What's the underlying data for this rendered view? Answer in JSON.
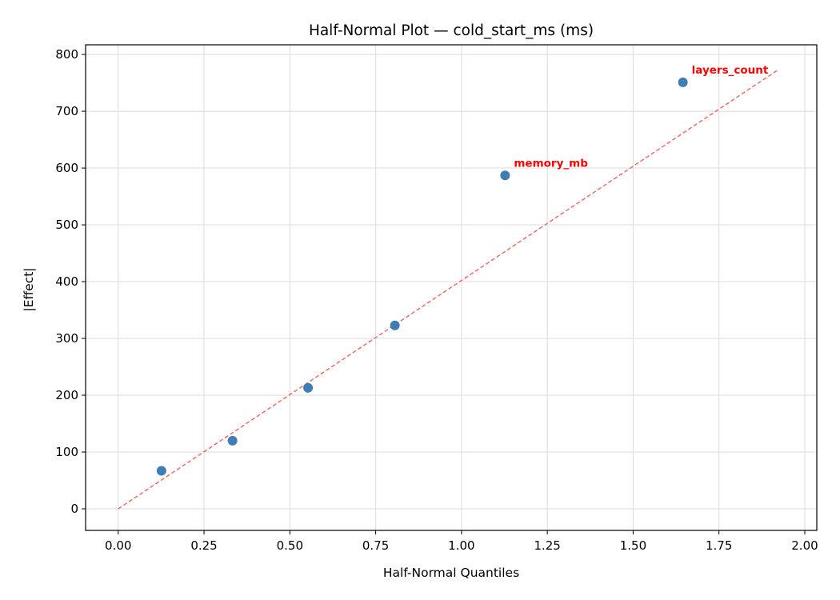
{
  "chart_data": {
    "type": "scatter",
    "title": "Half-Normal Plot — cold_start_ms (ms)",
    "xlabel": "Half-Normal Quantiles",
    "ylabel": "|Effect|",
    "xlim": [
      -0.095,
      2.035
    ],
    "ylim": [
      -38,
      817
    ],
    "x_ticks": [
      "0.00",
      "0.25",
      "0.50",
      "0.75",
      "1.00",
      "1.25",
      "1.50",
      "1.75",
      "2.00"
    ],
    "y_ticks": [
      "0",
      "100",
      "200",
      "300",
      "400",
      "500",
      "600",
      "700",
      "800"
    ],
    "grid": true,
    "series": [
      {
        "marker_color": "#3f7db5",
        "points": [
          {
            "x": 0.126,
            "y": 67
          },
          {
            "x": 0.333,
            "y": 120
          },
          {
            "x": 0.553,
            "y": 213
          },
          {
            "x": 0.806,
            "y": 323
          },
          {
            "x": 1.127,
            "y": 587
          },
          {
            "x": 1.645,
            "y": 751
          }
        ]
      }
    ],
    "reference_line": {
      "x": [
        0,
        1.92
      ],
      "y": [
        0,
        772
      ],
      "color": "#f0625e",
      "style": "dashed"
    },
    "annotations": [
      {
        "text": "memory_mb",
        "x": 1.127,
        "y": 587,
        "color": "#ff0000"
      },
      {
        "text": "layers_count",
        "x": 1.645,
        "y": 751,
        "color": "#ff0000"
      }
    ]
  }
}
